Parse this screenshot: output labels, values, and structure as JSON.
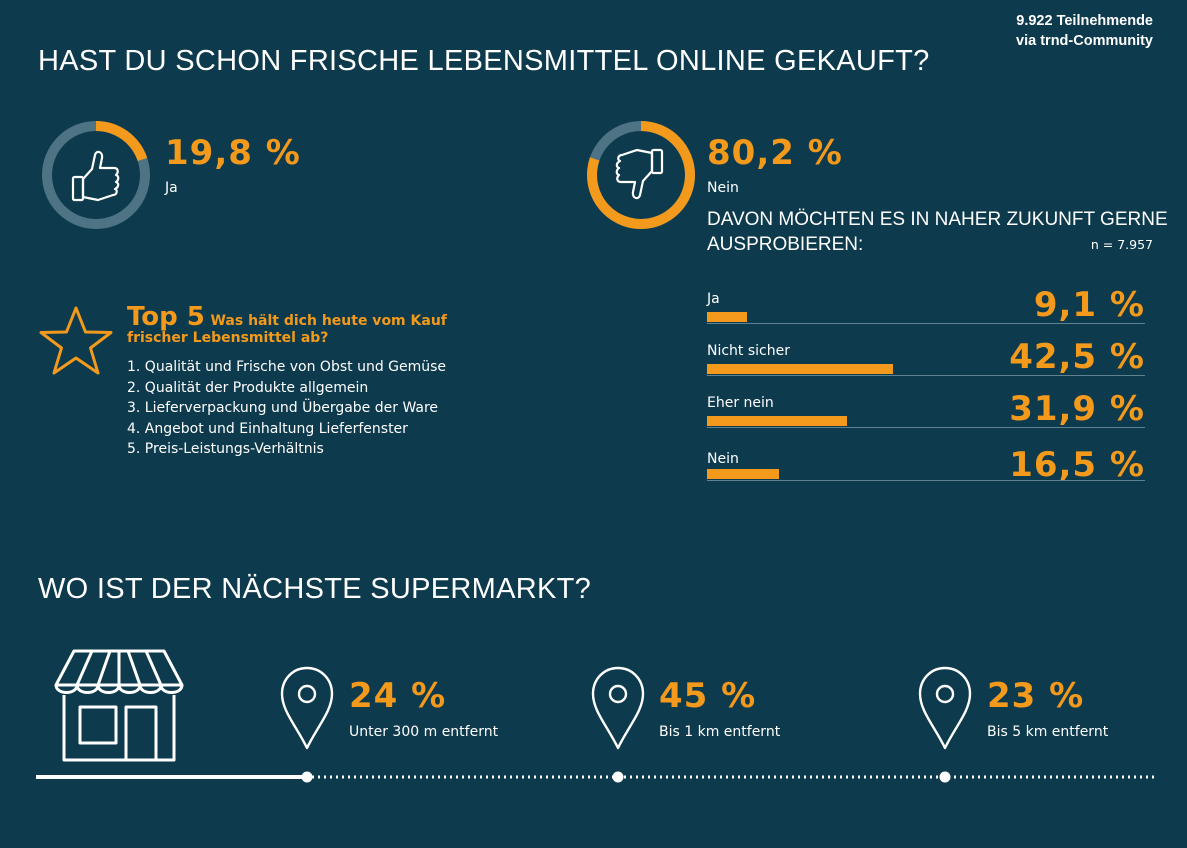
{
  "source": {
    "line1": "9.922 Teilnehmende",
    "line2": "via trnd-Community"
  },
  "q1": {
    "title": "HAST DU SCHON FRISCHE LEBENSMITTEL ONLINE GEKAUFT?",
    "yes": {
      "pct": "19,8 %",
      "label": "Ja",
      "value": 19.8
    },
    "no": {
      "pct": "80,2 %",
      "label": "Nein",
      "value": 80.2
    }
  },
  "followup": {
    "title_line1": "DAVON MÖCHTEN ES IN NAHER ZUKUNFT GERNE",
    "title_line2": "AUSPROBIEREN:",
    "n": "n = 7.957"
  },
  "top5": {
    "title": "Top 5",
    "question_line1": "Was hält dich heute vom Kauf",
    "question_line2": "frischer Lebensmittel ab?",
    "items": [
      "1. Qualität und Frische von Obst und Gemüse",
      "2. Qualität der Produkte allgemein",
      "3. Lieferverpackung und Übergabe der Ware",
      "4. Angebot und Einhaltung Lieferfenster",
      "5. Preis-Leistungs-Verhältnis"
    ]
  },
  "q2": {
    "title": "WO IST DER NÄCHSTE SUPERMARKT?"
  },
  "chart_data": [
    {
      "type": "pie",
      "categories": [
        "Ja",
        "Nein"
      ],
      "values": [
        19.8,
        80.2
      ]
    },
    {
      "type": "bar",
      "title": "DAVON MÖCHTEN ES IN NAHER ZUKUNFT GERNE AUSPROBIEREN:",
      "categories": [
        "Ja",
        "Nicht sicher",
        "Eher nein",
        "Nein"
      ],
      "values": [
        9.1,
        42.5,
        31.9,
        16.5
      ],
      "value_labels": [
        "9,1 %",
        "42,5 %",
        "31,9 %",
        "16,5 %"
      ]
    },
    {
      "type": "bar",
      "title": "WO IST DER NÄCHSTE SUPERMARKT?",
      "categories": [
        "Unter 300 m entfernt",
        "Bis 1 km entfernt",
        "Bis 5 km entfernt"
      ],
      "values": [
        24,
        45,
        23
      ],
      "value_labels": [
        "24 %",
        "45 %",
        "23 %"
      ]
    }
  ],
  "colors": {
    "background": "#0d3a4d",
    "accent": "#f39a1c",
    "ring_track": "#4e7384"
  },
  "icons": [
    "thumbs-up-icon",
    "thumbs-down-icon",
    "star-icon",
    "store-icon",
    "map-pin-icon"
  ]
}
